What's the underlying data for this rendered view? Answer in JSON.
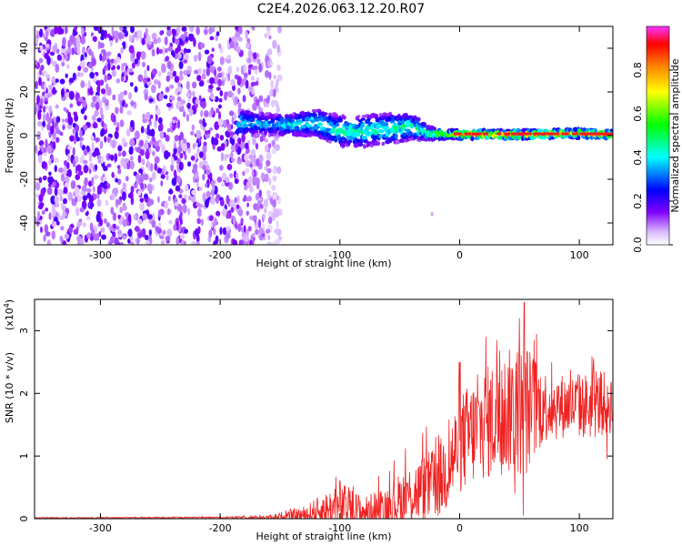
{
  "title": "C2E4.2026.063.12.20.R07",
  "colors": {
    "snr_line": "#ee2222",
    "ridge_peak": "#ff1a1a",
    "noise": "#7a1fe6"
  },
  "chart_data": [
    {
      "type": "heatmap",
      "name": "spectrogram",
      "xlabel": "Height of straight line (km)",
      "ylabel": "Frequency (Hz)",
      "xlim": [
        -355,
        128
      ],
      "ylim": [
        -50,
        50
      ],
      "xticks": [
        -300,
        -200,
        -100,
        0,
        100
      ],
      "yticks": [
        40,
        20,
        0,
        -20,
        -40
      ],
      "colorbar": {
        "label": "Normalized spectral amplitude",
        "range": [
          0,
          1
        ],
        "ticks": [
          "0.0",
          "0.2",
          "0.4",
          "0.6",
          "0.8"
        ],
        "colormap": [
          "#ffffff",
          "#8000ff",
          "#0000ff",
          "#00ffff",
          "#00ff00",
          "#ffff00",
          "#ff8000",
          "#ff0000",
          "#ff00ff"
        ]
      },
      "ridge": {
        "x": [
          -185,
          -160,
          -140,
          -120,
          -100,
          -80,
          -60,
          -40,
          -25,
          -10,
          0,
          20,
          40,
          60,
          80,
          100,
          128
        ],
        "center": [
          6,
          5,
          5,
          6,
          2,
          2,
          3,
          4,
          1,
          0.5,
          0.5,
          0.5,
          0.5,
          0.5,
          0.8,
          1,
          0.5
        ],
        "halfwidth": [
          6,
          5,
          5,
          6,
          7,
          7,
          7,
          6,
          3,
          2,
          2,
          2,
          2,
          2,
          2,
          2,
          2
        ],
        "amplitude": [
          0.45,
          0.4,
          0.45,
          0.5,
          0.5,
          0.5,
          0.5,
          0.5,
          0.55,
          0.7,
          0.9,
          0.95,
          0.95,
          0.9,
          0.9,
          0.9,
          0.9
        ]
      },
      "noise_region": {
        "x_from": -355,
        "x_to": -150,
        "amplitude": 0.1
      }
    },
    {
      "type": "line",
      "name": "snr",
      "xlabel": "Height of straight line (km)",
      "ylabel": "SNR (10 * v/v)",
      "ylabel_multiplier": "(x10",
      "ylabel_exponent": "4",
      "ylabel_multiplier_close": ")",
      "xlim": [
        -355,
        128
      ],
      "ylim": [
        0,
        3.5
      ],
      "xticks": [
        -300,
        -200,
        -100,
        0,
        100
      ],
      "yticks": [
        0,
        1,
        2,
        3
      ],
      "envelope": {
        "x": [
          -355,
          -200,
          -160,
          -130,
          -110,
          -95,
          -80,
          -60,
          -40,
          -20,
          -10,
          0,
          20,
          40,
          55,
          70,
          90,
          110,
          128
        ],
        "base": [
          0.01,
          0.02,
          0.02,
          0.05,
          0.15,
          0.2,
          0.1,
          0.2,
          0.4,
          0.55,
          0.8,
          1.2,
          1.5,
          1.7,
          1.75,
          1.8,
          1.8,
          1.8,
          1.85
        ],
        "amp": [
          0.01,
          0.01,
          0.03,
          0.15,
          0.3,
          0.35,
          0.25,
          0.35,
          0.5,
          0.6,
          0.7,
          0.8,
          0.9,
          1.0,
          1.1,
          0.6,
          0.5,
          0.55,
          0.5
        ]
      },
      "peaks": [
        {
          "x": 54,
          "y": 3.45
        },
        {
          "x": 50,
          "y": 3.2
        },
        {
          "x": 22,
          "y": 2.9
        },
        {
          "x": 31,
          "y": 2.85
        },
        {
          "x": 43,
          "y": 2.4
        },
        {
          "x": 15,
          "y": 2.3
        },
        {
          "x": 118,
          "y": 2.35
        },
        {
          "x": -20,
          "y": 1.3
        },
        {
          "x": -100,
          "y": 0.6
        }
      ],
      "dips": [
        {
          "x": 53,
          "y": 0.05
        },
        {
          "x": 46,
          "y": 0.4
        },
        {
          "x": 35,
          "y": 0.7
        },
        {
          "x": 123,
          "y": 0.95
        }
      ]
    }
  ]
}
